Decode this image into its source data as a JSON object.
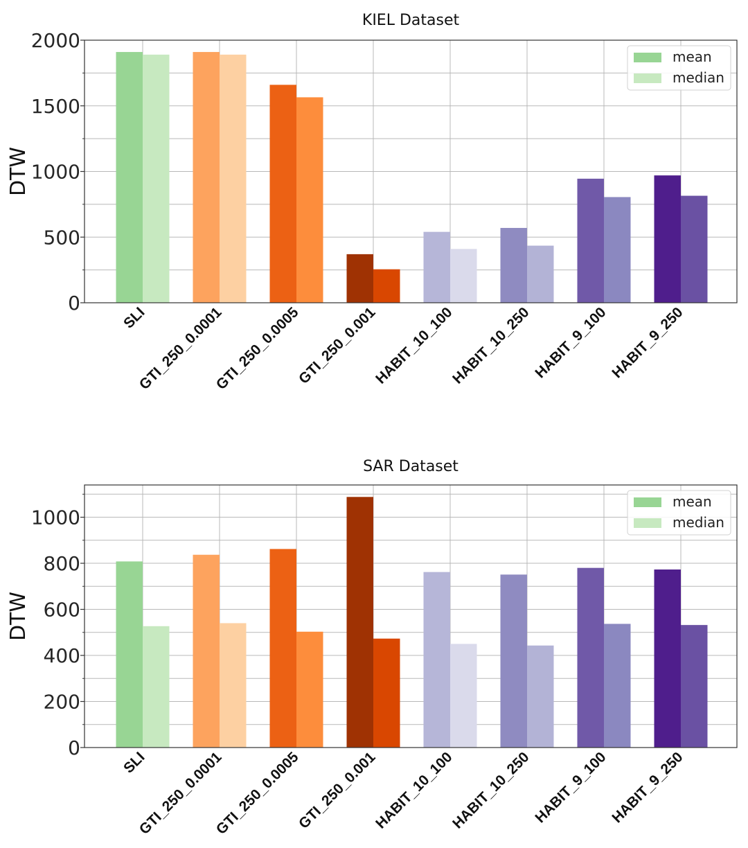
{
  "chart_data": [
    {
      "type": "bar",
      "title": "KIEL Dataset",
      "xlabel": "",
      "ylabel": "DTW",
      "ylim": [
        0,
        2000
      ],
      "yticks": [
        0,
        500,
        1000,
        1500,
        2000
      ],
      "grid": true,
      "legend_position": "top-right",
      "legend": [
        "mean",
        "median"
      ],
      "categories": [
        "SLI",
        "GTI_250_0.0001",
        "GTI_250_0.0005",
        "GTI_250_0.001",
        "HABIT_10_100",
        "HABIT_10_250",
        "HABIT_9_100",
        "HABIT_9_250"
      ],
      "series": [
        {
          "name": "mean",
          "values": [
            1910,
            1910,
            1660,
            370,
            540,
            570,
            945,
            970
          ]
        },
        {
          "name": "median",
          "values": [
            1890,
            1890,
            1565,
            255,
            410,
            435,
            805,
            815
          ]
        }
      ],
      "colors": {
        "mean": [
          "#98d594",
          "#fda35e",
          "#ec6114",
          "#9f3203",
          "#b6b6d8",
          "#8f8bc1",
          "#7059a8",
          "#4f1e8c"
        ],
        "median": [
          "#c7e9c0",
          "#fdd0a2",
          "#fd8d3c",
          "#d94701",
          "#dadaeb",
          "#b3b3d6",
          "#8b88c0",
          "#6a51a3"
        ]
      }
    },
    {
      "type": "bar",
      "title": "SAR Dataset",
      "xlabel": "",
      "ylabel": "DTW",
      "ylim": [
        0,
        1140
      ],
      "yticks": [
        0,
        200,
        400,
        600,
        800,
        1000
      ],
      "grid": true,
      "legend_position": "top-right",
      "legend": [
        "mean",
        "median"
      ],
      "categories": [
        "SLI",
        "GTI_250_0.0001",
        "GTI_250_0.0005",
        "GTI_250_0.001",
        "HABIT_10_100",
        "HABIT_10_250",
        "HABIT_9_100",
        "HABIT_9_250"
      ],
      "series": [
        {
          "name": "mean",
          "values": [
            808,
            837,
            862,
            1088,
            762,
            751,
            780,
            773
          ]
        },
        {
          "name": "median",
          "values": [
            527,
            540,
            503,
            473,
            450,
            443,
            537,
            532
          ]
        }
      ],
      "colors": {
        "mean": [
          "#98d594",
          "#fda35e",
          "#ec6114",
          "#9f3203",
          "#b6b6d8",
          "#8f8bc1",
          "#7059a8",
          "#4f1e8c"
        ],
        "median": [
          "#c7e9c0",
          "#fdd0a2",
          "#fd8d3c",
          "#d94701",
          "#dadaeb",
          "#b3b3d6",
          "#8b88c0",
          "#6a51a3"
        ]
      }
    }
  ]
}
